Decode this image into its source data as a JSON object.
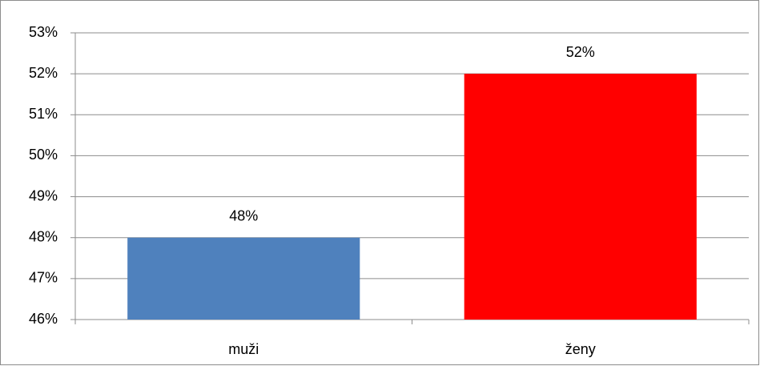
{
  "chart_data": {
    "type": "bar",
    "categories": [
      "muži",
      "ženy"
    ],
    "values": [
      48,
      52
    ],
    "value_labels": [
      "48%",
      "52%"
    ],
    "colors": [
      "#4f81bd",
      "#ff0000"
    ],
    "ylim": [
      46,
      53
    ],
    "yticks": [
      {
        "value": 46,
        "label": "46%"
      },
      {
        "value": 47,
        "label": "47%"
      },
      {
        "value": 48,
        "label": "48%"
      },
      {
        "value": 49,
        "label": "49%"
      },
      {
        "value": 50,
        "label": "50%"
      },
      {
        "value": 51,
        "label": "51%"
      },
      {
        "value": 52,
        "label": "52%"
      },
      {
        "value": 53,
        "label": "53%"
      }
    ],
    "grid": true
  }
}
